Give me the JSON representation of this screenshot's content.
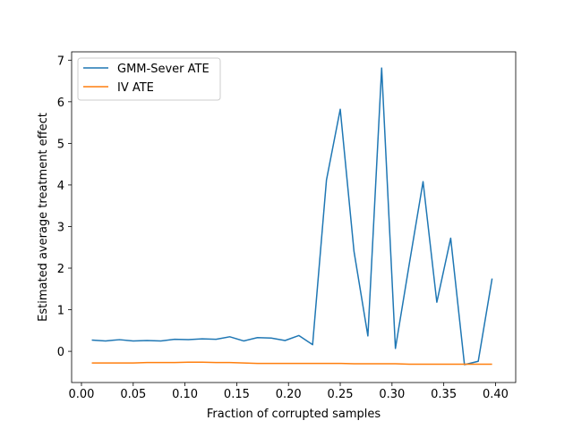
{
  "chart_data": {
    "type": "line",
    "title": "",
    "xlabel": "Fraction of corrupted samples",
    "ylabel": "Estimated average treatment effect",
    "xlim": [
      -0.0095,
      0.4195
    ],
    "ylim": [
      -0.75,
      7.2
    ],
    "xticks": [
      0.0,
      0.05,
      0.1,
      0.15,
      0.2,
      0.25,
      0.3,
      0.35,
      0.4
    ],
    "xtick_labels": [
      "0.00",
      "0.05",
      "0.10",
      "0.15",
      "0.20",
      "0.25",
      "0.30",
      "0.35",
      "0.40"
    ],
    "yticks": [
      0,
      1,
      2,
      3,
      4,
      5,
      6,
      7
    ],
    "ytick_labels": [
      "0",
      "1",
      "2",
      "3",
      "4",
      "5",
      "6",
      "7"
    ],
    "grid": false,
    "legend_position": "top-left",
    "x": [
      0.01,
      0.0233,
      0.0367,
      0.05,
      0.0633,
      0.0767,
      0.09,
      0.1033,
      0.1167,
      0.13,
      0.1433,
      0.1567,
      0.17,
      0.1833,
      0.1967,
      0.21,
      0.2233,
      0.2367,
      0.25,
      0.2633,
      0.2767,
      0.29,
      0.3033,
      0.3167,
      0.33,
      0.3433,
      0.3567,
      0.37,
      0.3833,
      0.3967
    ],
    "series": [
      {
        "name": "GMM-Sever ATE",
        "color": "#1f77b4",
        "values": [
          0.27,
          0.25,
          0.28,
          0.25,
          0.26,
          0.25,
          0.29,
          0.28,
          0.3,
          0.29,
          0.35,
          0.25,
          0.33,
          0.32,
          0.26,
          0.38,
          0.16,
          4.12,
          5.82,
          2.4,
          0.37,
          6.81,
          0.07,
          2.1,
          4.08,
          1.18,
          2.72,
          -0.32,
          -0.24,
          1.75
        ]
      },
      {
        "name": "IV ATE",
        "color": "#ff7f0e",
        "values": [
          -0.28,
          -0.28,
          -0.28,
          -0.28,
          -0.27,
          -0.27,
          -0.27,
          -0.26,
          -0.26,
          -0.27,
          -0.27,
          -0.28,
          -0.29,
          -0.29,
          -0.29,
          -0.29,
          -0.29,
          -0.29,
          -0.29,
          -0.3,
          -0.3,
          -0.3,
          -0.3,
          -0.31,
          -0.31,
          -0.31,
          -0.31,
          -0.31,
          -0.31,
          -0.31
        ]
      }
    ]
  }
}
